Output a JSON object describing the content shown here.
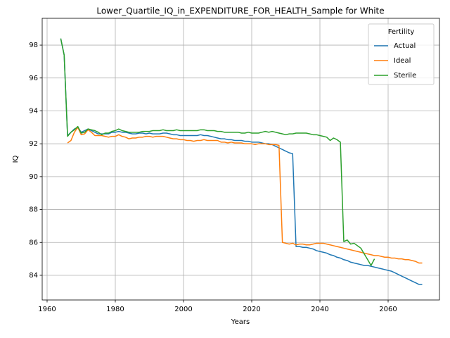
{
  "chart_data": {
    "type": "line",
    "title": "Lower_Quartile_IQ_in_EXPENDITURE_FOR_HEALTH_Sample for White",
    "x_label": "Years",
    "y_label": "IQ",
    "legend_title": "Fertility",
    "legend_loc": "upper right",
    "grid": true,
    "xlim": [
      1958.56,
      2075.05
    ],
    "xticks": [
      1960,
      1980,
      2000,
      2020,
      2040,
      2060
    ],
    "ylim": [
      82.5,
      99.63
    ],
    "yticks": [
      84,
      86,
      88,
      90,
      92,
      94,
      96,
      98
    ],
    "x": [
      1964,
      1965,
      1966,
      1967,
      1968,
      1969,
      1970,
      1971,
      1972,
      1973,
      1974,
      1975,
      1976,
      1977,
      1978,
      1979,
      1980,
      1981,
      1982,
      1983,
      1984,
      1985,
      1986,
      1987,
      1988,
      1989,
      1990,
      1991,
      1992,
      1993,
      1994,
      1995,
      1996,
      1997,
      1998,
      1999,
      2000,
      2001,
      2002,
      2003,
      2004,
      2005,
      2006,
      2007,
      2008,
      2009,
      2010,
      2011,
      2012,
      2013,
      2014,
      2015,
      2016,
      2017,
      2018,
      2019,
      2020,
      2021,
      2022,
      2023,
      2024,
      2025,
      2026,
      2027,
      2028,
      2029,
      2030,
      2031,
      2032,
      2033,
      2034,
      2035,
      2036,
      2037,
      2038,
      2039,
      2040,
      2041,
      2042,
      2043,
      2044,
      2045,
      2046,
      2047,
      2048,
      2049,
      2050,
      2051,
      2052,
      2053,
      2054,
      2055,
      2056,
      2057,
      2058,
      2059,
      2060,
      2061,
      2062,
      2063,
      2064,
      2065,
      2066,
      2067,
      2068,
      2069,
      2070
    ],
    "series": [
      {
        "name": "Actual",
        "color": "#1f77b4",
        "values": [
          98.4,
          97.4,
          92.5,
          92.7,
          92.9,
          93.0,
          92.7,
          92.8,
          92.9,
          92.8,
          92.7,
          92.6,
          92.6,
          92.6,
          92.6,
          92.7,
          92.7,
          92.75,
          92.7,
          92.7,
          92.65,
          92.6,
          92.6,
          92.65,
          92.65,
          92.6,
          92.65,
          92.6,
          92.6,
          92.6,
          92.65,
          92.65,
          92.6,
          92.55,
          92.55,
          92.5,
          92.5,
          92.5,
          92.5,
          92.5,
          92.5,
          92.55,
          92.5,
          92.5,
          92.45,
          92.4,
          92.35,
          92.3,
          92.3,
          92.25,
          92.25,
          92.2,
          92.2,
          92.2,
          92.15,
          92.15,
          92.1,
          92.1,
          92.1,
          92.05,
          92.0,
          92.0,
          91.95,
          91.85,
          91.75,
          91.65,
          91.55,
          91.45,
          91.4,
          85.75,
          85.75,
          85.7,
          85.7,
          85.65,
          85.6,
          85.5,
          85.45,
          85.4,
          85.35,
          85.25,
          85.2,
          85.1,
          85.05,
          84.95,
          84.9,
          84.8,
          84.75,
          84.7,
          84.65,
          84.6,
          84.6,
          84.55,
          84.5,
          84.45,
          84.4,
          84.35,
          84.3,
          84.25,
          84.15,
          84.05,
          83.95,
          83.85,
          83.75,
          83.65,
          83.55,
          83.45,
          83.45
        ]
      },
      {
        "name": "Ideal",
        "color": "#ff7f0e",
        "values": [
          null,
          null,
          92.05,
          92.2,
          92.7,
          93.0,
          92.55,
          92.6,
          92.85,
          92.7,
          92.5,
          92.5,
          92.5,
          92.45,
          92.4,
          92.45,
          92.45,
          92.55,
          92.45,
          92.4,
          92.3,
          92.35,
          92.35,
          92.4,
          92.4,
          92.45,
          92.45,
          92.4,
          92.45,
          92.45,
          92.45,
          92.4,
          92.35,
          92.3,
          92.3,
          92.25,
          92.25,
          92.2,
          92.2,
          92.15,
          92.2,
          92.2,
          92.25,
          92.2,
          92.2,
          92.2,
          92.2,
          92.1,
          92.1,
          92.05,
          92.1,
          92.05,
          92.05,
          92.05,
          92.0,
          92.0,
          92.0,
          91.95,
          92.0,
          92.0,
          92.0,
          91.95,
          91.95,
          91.95,
          91.9,
          86.0,
          85.95,
          85.9,
          85.95,
          85.85,
          85.9,
          85.9,
          85.85,
          85.85,
          85.9,
          85.95,
          85.95,
          85.95,
          85.9,
          85.85,
          85.8,
          85.75,
          85.7,
          85.65,
          85.6,
          85.55,
          85.5,
          85.45,
          85.4,
          85.35,
          85.3,
          85.25,
          85.2,
          85.2,
          85.15,
          85.1,
          85.1,
          85.05,
          85.05,
          85.0,
          85.0,
          84.95,
          84.95,
          84.9,
          84.85,
          84.75,
          84.75
        ]
      },
      {
        "name": "Sterile",
        "color": "#2ca02c",
        "values": [
          98.4,
          97.4,
          92.45,
          92.7,
          92.85,
          93.05,
          92.65,
          92.7,
          92.9,
          92.85,
          92.8,
          92.7,
          92.55,
          92.65,
          92.65,
          92.75,
          92.8,
          92.9,
          92.8,
          92.75,
          92.7,
          92.7,
          92.7,
          92.7,
          92.75,
          92.75,
          92.75,
          92.8,
          92.8,
          92.8,
          92.85,
          92.8,
          92.8,
          92.8,
          92.85,
          92.8,
          92.8,
          92.8,
          92.8,
          92.8,
          92.8,
          92.85,
          92.85,
          92.8,
          92.8,
          92.8,
          92.75,
          92.75,
          92.7,
          92.7,
          92.7,
          92.7,
          92.7,
          92.65,
          92.65,
          92.7,
          92.65,
          92.65,
          92.65,
          92.7,
          92.75,
          92.7,
          92.75,
          92.7,
          92.65,
          92.6,
          92.55,
          92.6,
          92.6,
          92.65,
          92.65,
          92.65,
          92.65,
          92.6,
          92.55,
          92.55,
          92.5,
          92.45,
          92.4,
          92.2,
          92.35,
          92.25,
          92.1,
          86.05,
          86.15,
          85.9,
          85.95,
          85.8,
          85.65,
          85.3,
          84.95,
          84.6,
          85.0,
          null,
          null,
          null,
          null,
          null,
          null,
          null,
          null,
          null,
          null,
          null,
          null,
          null,
          null
        ]
      }
    ]
  }
}
